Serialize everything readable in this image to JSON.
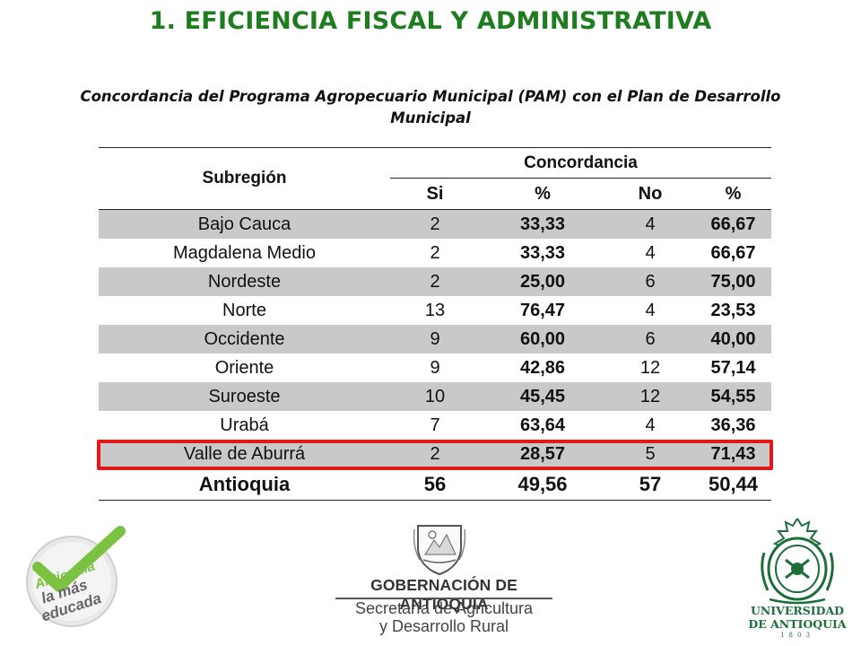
{
  "header": {
    "title": "1. EFICIENCIA FISCAL Y ADMINISTRATIVA",
    "subtitle_line1": "Concordancia del Programa Agropecuario Municipal (PAM) con el Plan de Desarrollo",
    "subtitle_line2": "Municipal"
  },
  "table": {
    "col_region": "Subregión",
    "col_group": "Concordancia",
    "col_si": "Si",
    "col_pct1": "%",
    "col_no": "No",
    "col_pct2": "%",
    "rows": [
      {
        "region": "Bajo Cauca",
        "si": "2",
        "pct_si": "33,33",
        "no": "4",
        "pct_no": "66,67"
      },
      {
        "region": "Magdalena Medio",
        "si": "2",
        "pct_si": "33,33",
        "no": "4",
        "pct_no": "66,67"
      },
      {
        "region": "Nordeste",
        "si": "2",
        "pct_si": "25,00",
        "no": "6",
        "pct_no": "75,00"
      },
      {
        "region": "Norte",
        "si": "13",
        "pct_si": "76,47",
        "no": "4",
        "pct_no": "23,53"
      },
      {
        "region": "Occidente",
        "si": "9",
        "pct_si": "60,00",
        "no": "6",
        "pct_no": "40,00"
      },
      {
        "region": "Oriente",
        "si": "9",
        "pct_si": "42,86",
        "no": "12",
        "pct_no": "57,14"
      },
      {
        "region": "Suroeste",
        "si": "10",
        "pct_si": "45,45",
        "no": "12",
        "pct_no": "54,55"
      },
      {
        "region": "Urabá",
        "si": "7",
        "pct_si": "63,64",
        "no": "4",
        "pct_no": "36,36"
      },
      {
        "region": "Valle de Aburrá",
        "si": "2",
        "pct_si": "28,57",
        "no": "5",
        "pct_no": "71,43"
      }
    ],
    "total": {
      "region": "Antioquia",
      "si": "56",
      "pct_si": "49,56",
      "no": "57",
      "pct_no": "50,44"
    }
  },
  "logos": {
    "antioquia_lettering": [
      "Antioquia",
      "la más",
      "educada"
    ],
    "gobernacion_name": "GOBERNACIÓN DE ANTIOQUIA",
    "secretaria_line1": "Secretaría de Agricultura",
    "secretaria_line2": "y Desarrollo Rural",
    "udea_line1": "UNIVERSIDAD",
    "udea_line2": "DE ANTIOQUIA",
    "udea_year": "1803"
  },
  "colors": {
    "title_green": "#1e7d1e",
    "row_shade": "#c9c9c9",
    "highlight_red": "#e01818",
    "udea_green": "#1d6e3a",
    "check_green": "#7cc242"
  }
}
